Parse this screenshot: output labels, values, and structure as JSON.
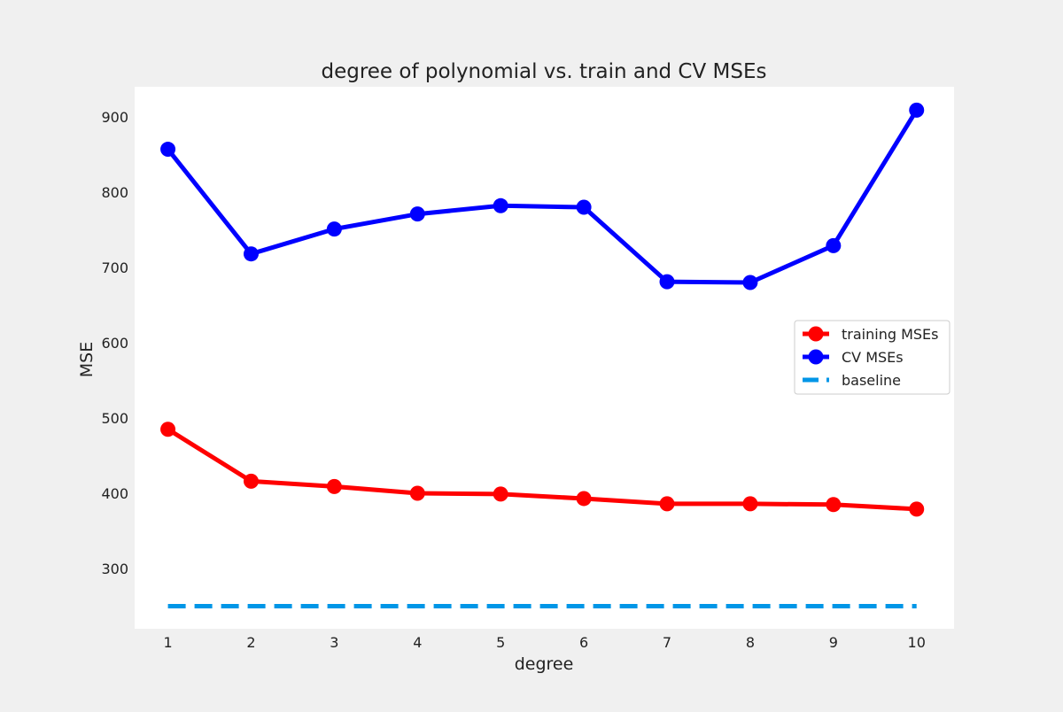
{
  "chart_data": {
    "type": "line",
    "title": "degree of polynomial vs. train and CV MSEs",
    "xlabel": "degree",
    "ylabel": "MSE",
    "x": [
      1,
      2,
      3,
      4,
      5,
      6,
      7,
      8,
      9,
      10
    ],
    "x_ticks": [
      "1",
      "2",
      "3",
      "4",
      "5",
      "6",
      "7",
      "8",
      "9",
      "10"
    ],
    "y_ticks": [
      "300",
      "400",
      "500",
      "600",
      "700",
      "800",
      "900"
    ],
    "xlim": [
      0.6,
      10.45
    ],
    "ylim": [
      220,
      940
    ],
    "grid": false,
    "legend_position": "center-right",
    "series": [
      {
        "name": "training MSEs",
        "color": "#ff0000",
        "style": "solid-with-markers",
        "values": [
          485,
          416,
          409,
          400,
          399,
          393,
          386,
          386,
          385,
          379
        ]
      },
      {
        "name": "CV MSEs",
        "color": "#0000ff",
        "style": "solid-with-markers",
        "values": [
          857,
          718,
          751,
          771,
          782,
          780,
          681,
          680,
          729,
          909
        ]
      },
      {
        "name": "baseline",
        "color": "#0096e7",
        "style": "dashed",
        "values": [
          250,
          250,
          250,
          250,
          250,
          250,
          250,
          250,
          250,
          250
        ]
      }
    ]
  }
}
